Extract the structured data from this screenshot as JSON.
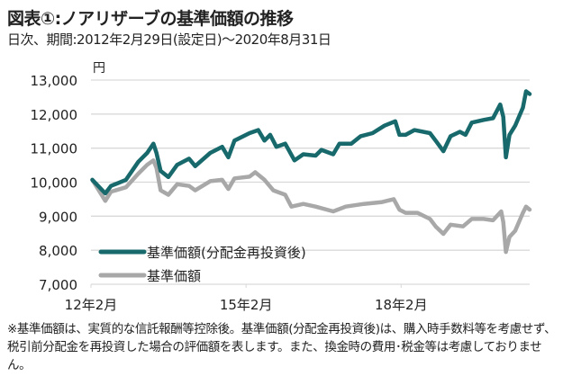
{
  "chart_data": {
    "type": "line",
    "title": "図表①:ノアリザーブの基準価額の推移",
    "subtitle": "日次、期間:2012年2月29日(設定日)～2020年8月31日",
    "ylabel": "円",
    "ylim": [
      7000,
      13000
    ],
    "yticks": [
      "13,000",
      "12,000",
      "11,000",
      "10,000",
      "9,000",
      "8,000",
      "7,000"
    ],
    "ytick_values": [
      13000,
      12000,
      11000,
      10000,
      9000,
      8000,
      7000
    ],
    "xlim": [
      2012.08,
      2020.67
    ],
    "xticks": [
      "12年2月",
      "15年2月",
      "18年2月"
    ],
    "xtick_values": [
      2012.083,
      2015.083,
      2018.083
    ],
    "grid": true,
    "legend_position": "bottom-left",
    "series": [
      {
        "name": "基準価額(分配金再投資後)",
        "color": "#17696c",
        "x": [
          2012.11,
          2012.36,
          2012.47,
          2012.76,
          2013.0,
          2013.17,
          2013.29,
          2013.35,
          2013.43,
          2013.58,
          2013.75,
          2013.98,
          2014.1,
          2014.39,
          2014.62,
          2014.74,
          2014.86,
          2015.15,
          2015.32,
          2015.44,
          2015.55,
          2015.67,
          2015.84,
          2016.02,
          2016.19,
          2016.43,
          2016.54,
          2016.77,
          2016.89,
          2017.12,
          2017.3,
          2017.53,
          2017.76,
          2017.97,
          2018.05,
          2018.17,
          2018.34,
          2018.64,
          2018.75,
          2018.9,
          2019.04,
          2019.22,
          2019.33,
          2019.45,
          2019.68,
          2019.86,
          2020.0,
          2020.06,
          2020.11,
          2020.18,
          2020.29,
          2020.44,
          2020.5,
          2020.57
        ],
        "values": [
          10070,
          9670,
          9890,
          10070,
          10600,
          10860,
          11130,
          10860,
          10330,
          10150,
          10510,
          10690,
          10470,
          10860,
          11040,
          10730,
          11220,
          11440,
          11530,
          11220,
          11390,
          11040,
          11130,
          10640,
          10820,
          10780,
          10950,
          10820,
          11130,
          11130,
          11350,
          11440,
          11660,
          11790,
          11390,
          11390,
          11530,
          11440,
          11220,
          10910,
          11350,
          11480,
          11390,
          11750,
          11830,
          11880,
          12280,
          11920,
          10730,
          11390,
          11660,
          12190,
          12670,
          12590
        ]
      },
      {
        "name": "基準価額",
        "color": "#a8a8a8",
        "x": [
          2012.11,
          2012.36,
          2012.47,
          2012.76,
          2013.0,
          2013.17,
          2013.29,
          2013.35,
          2013.43,
          2013.58,
          2013.75,
          2013.98,
          2014.1,
          2014.39,
          2014.62,
          2014.74,
          2014.86,
          2015.15,
          2015.26,
          2015.44,
          2015.61,
          2015.84,
          2015.96,
          2016.19,
          2016.43,
          2016.77,
          2017.01,
          2017.36,
          2017.7,
          2017.94,
          2018.05,
          2018.17,
          2018.4,
          2018.64,
          2018.75,
          2018.9,
          2019.04,
          2019.28,
          2019.45,
          2019.68,
          2019.86,
          2020.02,
          2020.06,
          2020.11,
          2020.18,
          2020.29,
          2020.44,
          2020.5,
          2020.57
        ],
        "values": [
          10070,
          9450,
          9720,
          9850,
          10250,
          10510,
          10640,
          10420,
          9760,
          9630,
          9940,
          9890,
          9760,
          10030,
          10070,
          9800,
          10110,
          10160,
          10290,
          10070,
          9760,
          9630,
          9280,
          9360,
          9280,
          9140,
          9280,
          9360,
          9410,
          9500,
          9190,
          9100,
          9100,
          8920,
          8700,
          8480,
          8750,
          8700,
          8920,
          8920,
          8880,
          9140,
          8830,
          7950,
          8390,
          8570,
          9100,
          9280,
          9190
        ]
      }
    ]
  },
  "footnote": "※基準価額は、実質的な信託報酬等控除後。基準価額(分配金再投資後)は、購入時手数料等を考慮せず、税引前分配金を再投資した場合の評価額を表します。また、換金時の費用･税金等は考慮しておりません。"
}
